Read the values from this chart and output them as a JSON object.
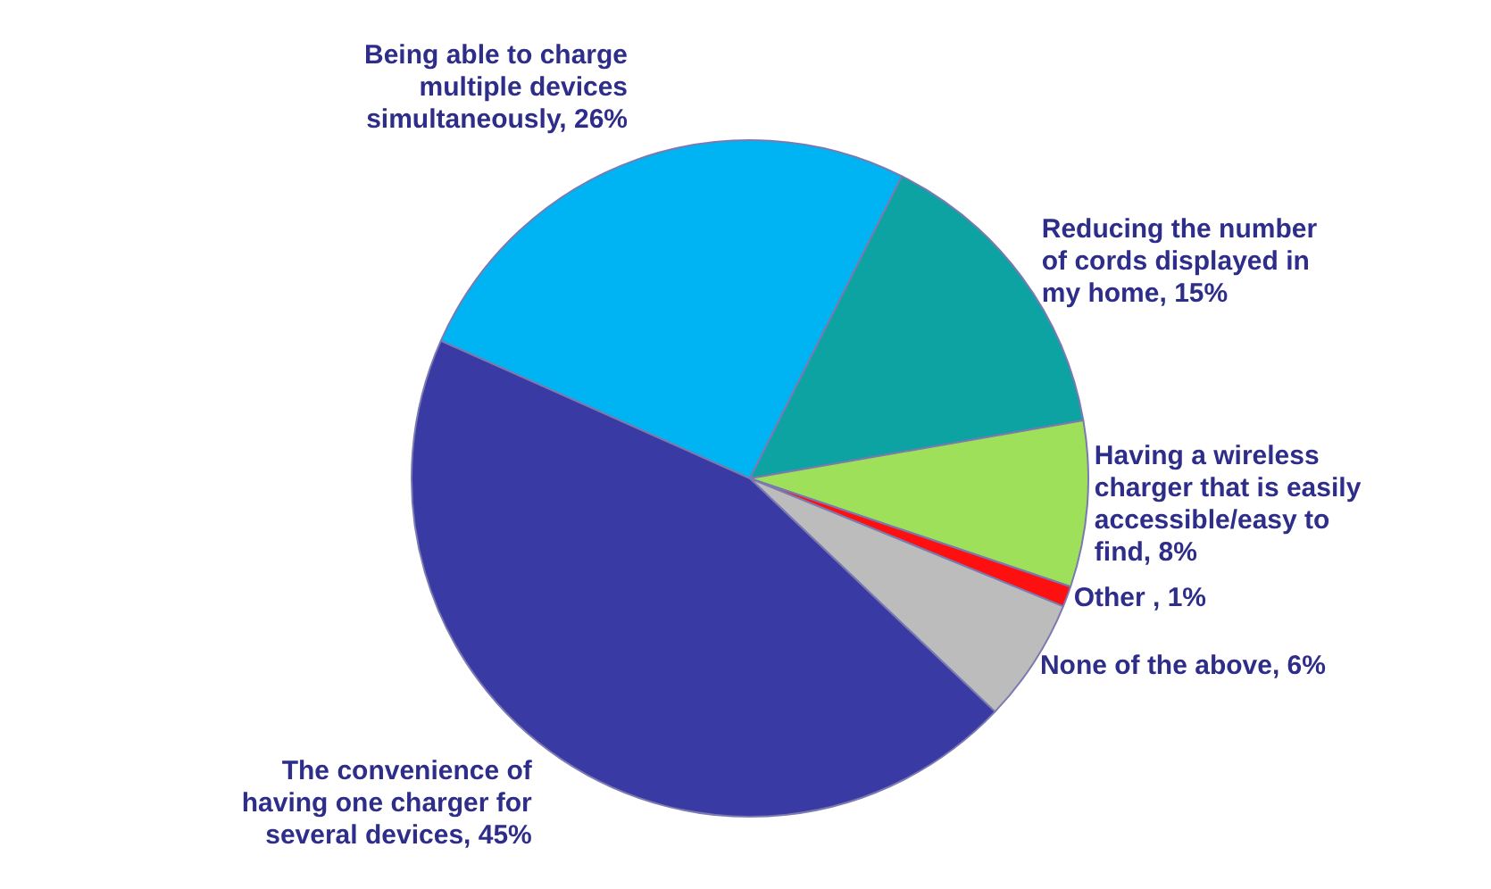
{
  "chart_data": {
    "type": "pie",
    "categories": [
      "Being able to charge multiple devices simultaneously",
      "Reducing the number of cords displayed in my home",
      "Having a wireless charger that is easily accessible/easy to find",
      "Other ",
      "None of the above",
      "The convenience of having one charger for several devices"
    ],
    "values": [
      26,
      15,
      8,
      1,
      6,
      45
    ],
    "value_labels": [
      "26%",
      "15%",
      "8%",
      "1%",
      "6%",
      "45%"
    ],
    "colors": [
      "#00b4f4",
      "#0ea3a3",
      "#9ee05a",
      "#ff1010",
      "#bcbcbc",
      "#3a3aa4"
    ],
    "legend": false
  }
}
